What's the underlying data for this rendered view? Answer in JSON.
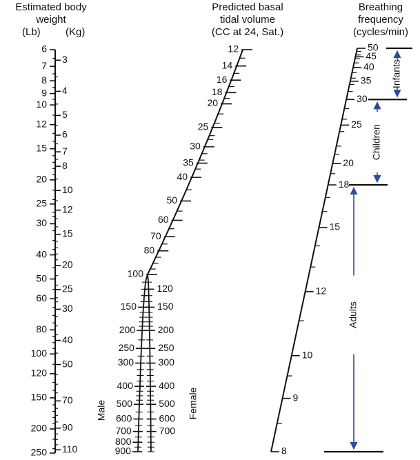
{
  "headers": {
    "weight": {
      "line1": "Estimated body",
      "line2": "weight",
      "unit_lb": "(Lb)",
      "unit_kg": "(Kg)"
    },
    "volume": {
      "line1": "Predicted basal",
      "line2": "tidal volume",
      "line3": "(CC at 24, Sat.)"
    },
    "frequency": {
      "line1": "Breathing",
      "line2": "frequency",
      "line3": "(cycles/min)"
    }
  },
  "weight_scale": {
    "lb_labels": [
      "6",
      "7",
      "8",
      "9",
      "10",
      "12",
      "15",
      "20",
      "25",
      "30",
      "40",
      "50",
      "60",
      "80",
      "100",
      "120",
      "150",
      "200",
      "250"
    ],
    "kg_labels": [
      "3",
      "4",
      "5",
      "6",
      "7",
      "8",
      "10",
      "12",
      "15",
      "20",
      "25",
      "30",
      "40",
      "50",
      "70",
      "90",
      "110"
    ]
  },
  "volume_scale": {
    "upper_labels": [
      "12",
      "14",
      "16",
      "18",
      "20",
      "25",
      "30",
      "35",
      "40",
      "50",
      "60",
      "70",
      "80",
      "100"
    ],
    "male_labels": [
      "150",
      "200",
      "250",
      "300",
      "400",
      "500",
      "600",
      "700",
      "800",
      "900"
    ],
    "female_labels": [
      "120",
      "150",
      "200",
      "250",
      "300",
      "400",
      "500",
      "600",
      "700"
    ],
    "male_label": "Male",
    "female_label": "Female"
  },
  "frequency_scale": {
    "labels": [
      "50",
      "45",
      "40",
      "35",
      "30",
      "25",
      "20",
      "18",
      "15",
      "12",
      "10",
      "9",
      "8"
    ]
  },
  "age_groups": [
    {
      "name": "Infants",
      "from": 50,
      "to": 30
    },
    {
      "name": "Children",
      "from": 30,
      "to": 18
    },
    {
      "name": "Adults",
      "from": 18,
      "to": 8
    }
  ],
  "colors": {
    "arrow": "#2a4d9b",
    "ink": "#111111"
  }
}
